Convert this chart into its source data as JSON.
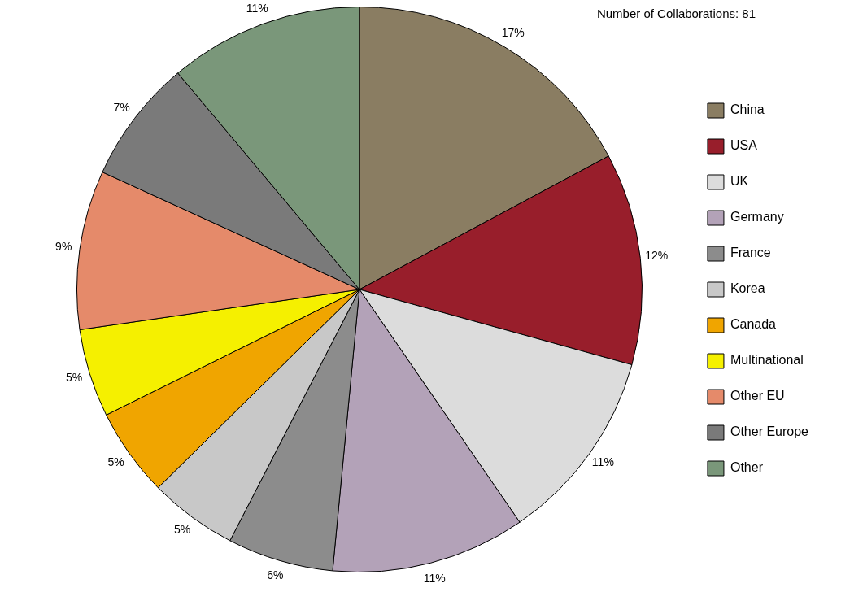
{
  "chart_data": {
    "type": "pie",
    "title": "Number of Collaborations: 81",
    "categories": [
      "China",
      "USA",
      "UK",
      "Germany",
      "France",
      "Korea",
      "Canada",
      "Multinational",
      "Other EU",
      "Other Europe",
      "Other"
    ],
    "values": [
      17,
      12,
      11,
      11,
      6,
      5,
      5,
      5,
      9,
      7,
      11
    ],
    "colors": [
      "#8a7d62",
      "#981e2b",
      "#dcdcdc",
      "#b3a2b8",
      "#8c8c8c",
      "#c8c8c8",
      "#f0a500",
      "#f5f000",
      "#e58a6a",
      "#7a7a7a",
      "#7a977a"
    ],
    "value_labels": [
      "17%",
      "12%",
      "11%",
      "11%",
      "6%",
      "5%",
      "5%",
      "5%",
      "9%",
      "7%",
      "11%"
    ],
    "legend": "right"
  }
}
